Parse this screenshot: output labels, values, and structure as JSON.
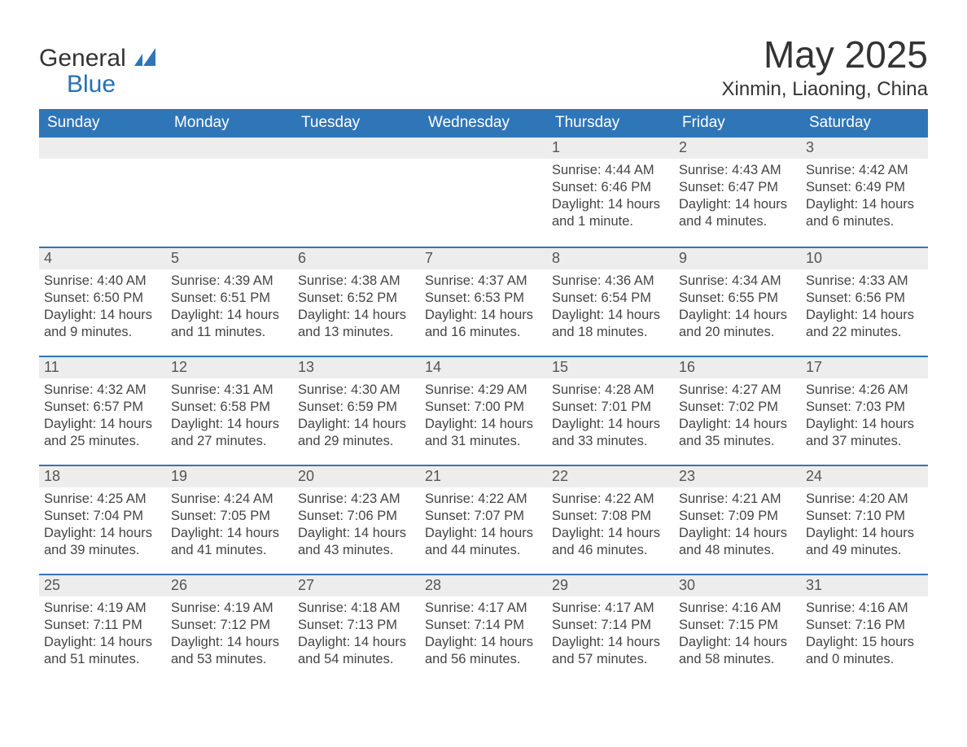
{
  "brand": {
    "name_part1": "General",
    "name_part2": "Blue",
    "mark_color": "#2f76b8",
    "text_color": "#333333"
  },
  "header": {
    "title": "May 2025",
    "location": "Xinmin, Liaoning, China"
  },
  "colors": {
    "header_bg": "#2f76b8",
    "header_text": "#ffffff",
    "day_bar_bg": "#ededed",
    "day_bar_border": "#2f76b8",
    "body_text": "#444444",
    "page_bg": "#ffffff"
  },
  "weekdays": [
    "Sunday",
    "Monday",
    "Tuesday",
    "Wednesday",
    "Thursday",
    "Friday",
    "Saturday"
  ],
  "rows": [
    [
      null,
      null,
      null,
      null,
      {
        "n": "1",
        "sr": "Sunrise: 4:44 AM",
        "ss": "Sunset: 6:46 PM",
        "d1": "Daylight: 14 hours",
        "d2": "and 1 minute."
      },
      {
        "n": "2",
        "sr": "Sunrise: 4:43 AM",
        "ss": "Sunset: 6:47 PM",
        "d1": "Daylight: 14 hours",
        "d2": "and 4 minutes."
      },
      {
        "n": "3",
        "sr": "Sunrise: 4:42 AM",
        "ss": "Sunset: 6:49 PM",
        "d1": "Daylight: 14 hours",
        "d2": "and 6 minutes."
      }
    ],
    [
      {
        "n": "4",
        "sr": "Sunrise: 4:40 AM",
        "ss": "Sunset: 6:50 PM",
        "d1": "Daylight: 14 hours",
        "d2": "and 9 minutes."
      },
      {
        "n": "5",
        "sr": "Sunrise: 4:39 AM",
        "ss": "Sunset: 6:51 PM",
        "d1": "Daylight: 14 hours",
        "d2": "and 11 minutes."
      },
      {
        "n": "6",
        "sr": "Sunrise: 4:38 AM",
        "ss": "Sunset: 6:52 PM",
        "d1": "Daylight: 14 hours",
        "d2": "and 13 minutes."
      },
      {
        "n": "7",
        "sr": "Sunrise: 4:37 AM",
        "ss": "Sunset: 6:53 PM",
        "d1": "Daylight: 14 hours",
        "d2": "and 16 minutes."
      },
      {
        "n": "8",
        "sr": "Sunrise: 4:36 AM",
        "ss": "Sunset: 6:54 PM",
        "d1": "Daylight: 14 hours",
        "d2": "and 18 minutes."
      },
      {
        "n": "9",
        "sr": "Sunrise: 4:34 AM",
        "ss": "Sunset: 6:55 PM",
        "d1": "Daylight: 14 hours",
        "d2": "and 20 minutes."
      },
      {
        "n": "10",
        "sr": "Sunrise: 4:33 AM",
        "ss": "Sunset: 6:56 PM",
        "d1": "Daylight: 14 hours",
        "d2": "and 22 minutes."
      }
    ],
    [
      {
        "n": "11",
        "sr": "Sunrise: 4:32 AM",
        "ss": "Sunset: 6:57 PM",
        "d1": "Daylight: 14 hours",
        "d2": "and 25 minutes."
      },
      {
        "n": "12",
        "sr": "Sunrise: 4:31 AM",
        "ss": "Sunset: 6:58 PM",
        "d1": "Daylight: 14 hours",
        "d2": "and 27 minutes."
      },
      {
        "n": "13",
        "sr": "Sunrise: 4:30 AM",
        "ss": "Sunset: 6:59 PM",
        "d1": "Daylight: 14 hours",
        "d2": "and 29 minutes."
      },
      {
        "n": "14",
        "sr": "Sunrise: 4:29 AM",
        "ss": "Sunset: 7:00 PM",
        "d1": "Daylight: 14 hours",
        "d2": "and 31 minutes."
      },
      {
        "n": "15",
        "sr": "Sunrise: 4:28 AM",
        "ss": "Sunset: 7:01 PM",
        "d1": "Daylight: 14 hours",
        "d2": "and 33 minutes."
      },
      {
        "n": "16",
        "sr": "Sunrise: 4:27 AM",
        "ss": "Sunset: 7:02 PM",
        "d1": "Daylight: 14 hours",
        "d2": "and 35 minutes."
      },
      {
        "n": "17",
        "sr": "Sunrise: 4:26 AM",
        "ss": "Sunset: 7:03 PM",
        "d1": "Daylight: 14 hours",
        "d2": "and 37 minutes."
      }
    ],
    [
      {
        "n": "18",
        "sr": "Sunrise: 4:25 AM",
        "ss": "Sunset: 7:04 PM",
        "d1": "Daylight: 14 hours",
        "d2": "and 39 minutes."
      },
      {
        "n": "19",
        "sr": "Sunrise: 4:24 AM",
        "ss": "Sunset: 7:05 PM",
        "d1": "Daylight: 14 hours",
        "d2": "and 41 minutes."
      },
      {
        "n": "20",
        "sr": "Sunrise: 4:23 AM",
        "ss": "Sunset: 7:06 PM",
        "d1": "Daylight: 14 hours",
        "d2": "and 43 minutes."
      },
      {
        "n": "21",
        "sr": "Sunrise: 4:22 AM",
        "ss": "Sunset: 7:07 PM",
        "d1": "Daylight: 14 hours",
        "d2": "and 44 minutes."
      },
      {
        "n": "22",
        "sr": "Sunrise: 4:22 AM",
        "ss": "Sunset: 7:08 PM",
        "d1": "Daylight: 14 hours",
        "d2": "and 46 minutes."
      },
      {
        "n": "23",
        "sr": "Sunrise: 4:21 AM",
        "ss": "Sunset: 7:09 PM",
        "d1": "Daylight: 14 hours",
        "d2": "and 48 minutes."
      },
      {
        "n": "24",
        "sr": "Sunrise: 4:20 AM",
        "ss": "Sunset: 7:10 PM",
        "d1": "Daylight: 14 hours",
        "d2": "and 49 minutes."
      }
    ],
    [
      {
        "n": "25",
        "sr": "Sunrise: 4:19 AM",
        "ss": "Sunset: 7:11 PM",
        "d1": "Daylight: 14 hours",
        "d2": "and 51 minutes."
      },
      {
        "n": "26",
        "sr": "Sunrise: 4:19 AM",
        "ss": "Sunset: 7:12 PM",
        "d1": "Daylight: 14 hours",
        "d2": "and 53 minutes."
      },
      {
        "n": "27",
        "sr": "Sunrise: 4:18 AM",
        "ss": "Sunset: 7:13 PM",
        "d1": "Daylight: 14 hours",
        "d2": "and 54 minutes."
      },
      {
        "n": "28",
        "sr": "Sunrise: 4:17 AM",
        "ss": "Sunset: 7:14 PM",
        "d1": "Daylight: 14 hours",
        "d2": "and 56 minutes."
      },
      {
        "n": "29",
        "sr": "Sunrise: 4:17 AM",
        "ss": "Sunset: 7:14 PM",
        "d1": "Daylight: 14 hours",
        "d2": "and 57 minutes."
      },
      {
        "n": "30",
        "sr": "Sunrise: 4:16 AM",
        "ss": "Sunset: 7:15 PM",
        "d1": "Daylight: 14 hours",
        "d2": "and 58 minutes."
      },
      {
        "n": "31",
        "sr": "Sunrise: 4:16 AM",
        "ss": "Sunset: 7:16 PM",
        "d1": "Daylight: 15 hours",
        "d2": "and 0 minutes."
      }
    ]
  ]
}
